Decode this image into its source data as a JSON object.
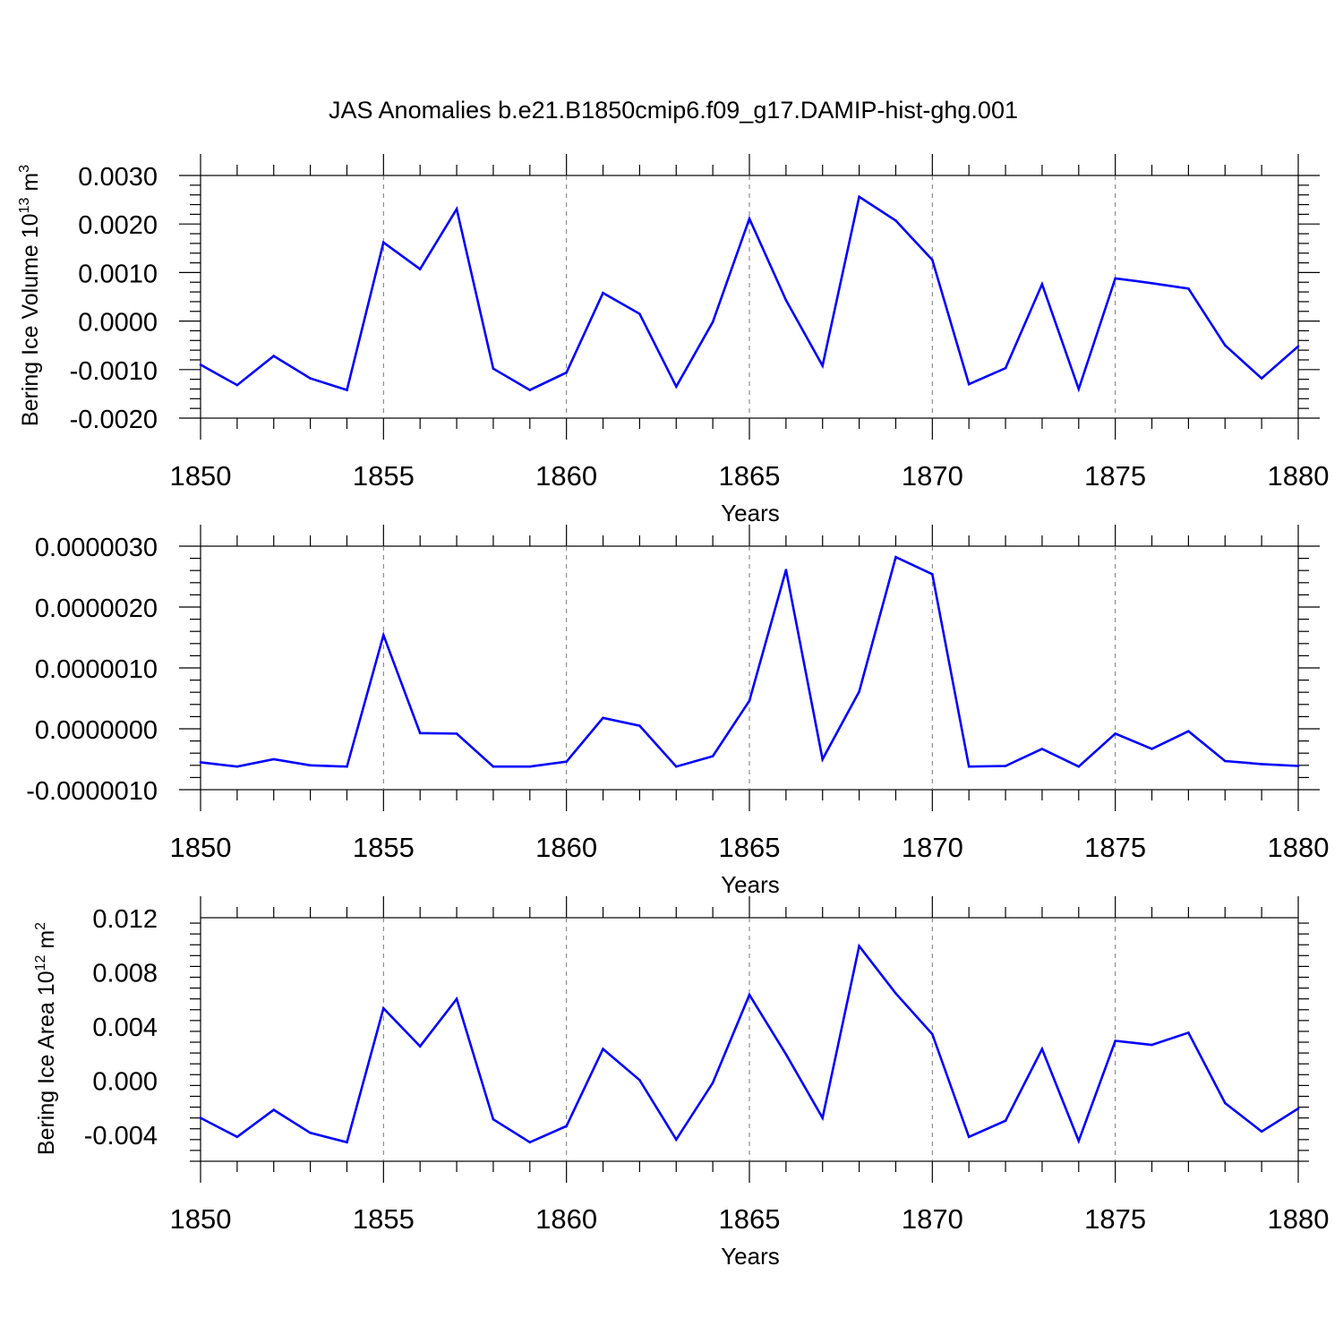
{
  "title": "JAS Anomalies b.e21.B1850cmip6.f09_g17.DAMIP-hist-ghg.001",
  "line_color": "#0000ff",
  "chart_data": [
    {
      "type": "line",
      "id": "volume",
      "ylabel_main": "Bering Ice Volume 10",
      "ylabel_sup1": "13",
      "ylabel_mid": " m",
      "ylabel_sup2": "3",
      "xlabel": "Years",
      "xlim": [
        1850,
        1880
      ],
      "ylim": [
        -0.002,
        0.003
      ],
      "yticks": [
        -0.002,
        -0.001,
        0.0,
        0.001,
        0.002,
        0.003
      ],
      "ytick_labels": [
        "-0.0020",
        "-0.0010",
        "0.0000",
        "0.0010",
        "0.0020",
        "0.0030"
      ],
      "xticks": [
        1850,
        1855,
        1860,
        1865,
        1870,
        1875,
        1880
      ],
      "xtick_labels": [
        "1850",
        "1855",
        "1860",
        "1865",
        "1870",
        "1875",
        "1880"
      ],
      "x": [
        1850,
        1851,
        1852,
        1853,
        1854,
        1855,
        1856,
        1857,
        1858,
        1859,
        1860,
        1861,
        1862,
        1863,
        1864,
        1865,
        1866,
        1867,
        1868,
        1869,
        1870,
        1871,
        1872,
        1873,
        1874,
        1875,
        1876,
        1877,
        1878,
        1879,
        1880
      ],
      "values": [
        -0.0009,
        -0.00132,
        -0.00072,
        -0.00118,
        -0.00142,
        0.00162,
        0.00107,
        0.00231,
        -0.00098,
        -0.00142,
        -0.00106,
        0.00058,
        0.00015,
        -0.00135,
        -2e-05,
        0.00211,
        0.00043,
        -0.00092,
        0.00256,
        0.00207,
        0.00126,
        -0.0013,
        -0.00097,
        0.00076,
        -0.0014,
        0.00088,
        0.00078,
        0.00067,
        -0.0005,
        -0.00118,
        -0.00052
      ]
    },
    {
      "type": "line",
      "id": "middle",
      "xlabel": "Years",
      "xlim": [
        1850,
        1880
      ],
      "ylim": [
        -1e-06,
        3e-06
      ],
      "yticks": [
        -1e-06,
        0.0,
        1e-06,
        2e-06,
        3e-06
      ],
      "ytick_labels": [
        "-0.0000010",
        "0.0000000",
        "0.0000010",
        "0.0000020",
        "0.0000030"
      ],
      "xticks": [
        1850,
        1855,
        1860,
        1865,
        1870,
        1875,
        1880
      ],
      "xtick_labels": [
        "1850",
        "1855",
        "1860",
        "1865",
        "1870",
        "1875",
        "1880"
      ],
      "x": [
        1850,
        1851,
        1852,
        1853,
        1854,
        1855,
        1856,
        1857,
        1858,
        1859,
        1860,
        1861,
        1862,
        1863,
        1864,
        1865,
        1866,
        1867,
        1868,
        1869,
        1870,
        1871,
        1872,
        1873,
        1874,
        1875,
        1876,
        1877,
        1878,
        1879,
        1880
      ],
      "values": [
        -5.5e-07,
        -6.2e-07,
        -5e-07,
        -6e-07,
        -6.2e-07,
        1.54e-06,
        -7e-08,
        -8e-08,
        -6.2e-07,
        -6.2e-07,
        -5.4e-07,
        1.8e-07,
        5e-08,
        -6.2e-07,
        -4.5e-07,
        4.6e-07,
        2.61e-06,
        -5e-07,
        6.1e-07,
        2.82e-06,
        2.54e-06,
        -6.2e-07,
        -6.1e-07,
        -3.3e-07,
        -6.2e-07,
        -8e-08,
        -3.3e-07,
        -4e-08,
        -5.3e-07,
        -5.8e-07,
        -6.1e-07
      ]
    },
    {
      "type": "line",
      "id": "area",
      "ylabel_main": "Bering Ice Area 10",
      "ylabel_sup1": "12",
      "ylabel_mid": " m",
      "ylabel_sup2": "2",
      "xlabel": "Years",
      "xlim": [
        1850,
        1880
      ],
      "ylim": [
        -0.006,
        0.012
      ],
      "yticks": [
        -0.004,
        0.0,
        0.004,
        0.008,
        0.012
      ],
      "ytick_labels": [
        "-0.004",
        "0.000",
        "0.004",
        "0.008",
        "0.012"
      ],
      "xticks": [
        1850,
        1855,
        1860,
        1865,
        1870,
        1875,
        1880
      ],
      "xtick_labels": [
        "1850",
        "1855",
        "1860",
        "1865",
        "1870",
        "1875",
        "1880"
      ],
      "x": [
        1850,
        1851,
        1852,
        1853,
        1854,
        1855,
        1856,
        1857,
        1858,
        1859,
        1860,
        1861,
        1862,
        1863,
        1864,
        1865,
        1866,
        1867,
        1868,
        1869,
        1870,
        1871,
        1872,
        1873,
        1874,
        1875,
        1876,
        1877,
        1878,
        1879,
        1880
      ],
      "values": [
        -0.0028,
        -0.0042,
        -0.0022,
        -0.0039,
        -0.0046,
        0.0053,
        0.0025,
        0.006,
        -0.0029,
        -0.0046,
        -0.0034,
        0.0023,
        0.0,
        -0.0044,
        -0.0002,
        0.0063,
        0.0019,
        -0.0028,
        0.0099,
        0.0064,
        0.0034,
        -0.0042,
        -0.003,
        0.0023,
        -0.0045,
        0.0029,
        0.0026,
        0.0035,
        -0.0017,
        -0.0038,
        -0.0021
      ]
    }
  ]
}
